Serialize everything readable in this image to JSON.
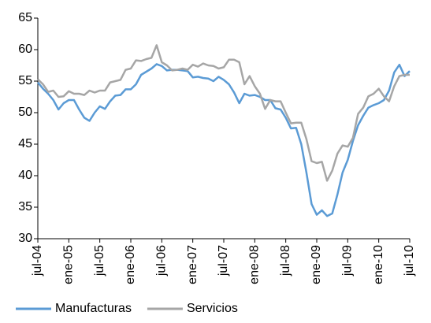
{
  "chart_data": {
    "type": "line",
    "categories": [
      "jul-04",
      null,
      null,
      null,
      null,
      null,
      "ene-05",
      null,
      null,
      null,
      null,
      null,
      "jul-05",
      null,
      null,
      null,
      null,
      null,
      "ene-06",
      null,
      null,
      null,
      null,
      null,
      "jul-06",
      null,
      null,
      null,
      null,
      null,
      "ene-07",
      null,
      null,
      null,
      null,
      null,
      "jul-07",
      null,
      null,
      null,
      null,
      null,
      "ene-08",
      null,
      null,
      null,
      null,
      null,
      "jul-08",
      null,
      null,
      null,
      null,
      null,
      "ene-09",
      null,
      null,
      null,
      null,
      null,
      "jul-09",
      null,
      null,
      null,
      null,
      null,
      "ene-10",
      null,
      null,
      null,
      null,
      null,
      "jul-10"
    ],
    "series": [
      {
        "name": "Manufacturas",
        "color": "#5b9bd5",
        "values": [
          54.8,
          53.8,
          53,
          52,
          50.5,
          51.5,
          52,
          52,
          50.5,
          49.2,
          48.7,
          50,
          51,
          50.6,
          51.8,
          52.7,
          52.8,
          53.7,
          53.7,
          54.5,
          56,
          56.5,
          57,
          57.7,
          57.4,
          56.7,
          56.8,
          56.8,
          56.7,
          56.6,
          55.6,
          55.7,
          55.5,
          55.4,
          55,
          55.7,
          55.2,
          54.5,
          53.2,
          51.5,
          53,
          52.7,
          52.8,
          52.5,
          52,
          52,
          50.7,
          50.5,
          49.2,
          47.5,
          47.6,
          45,
          40.5,
          35.5,
          33.8,
          34.5,
          33.6,
          34,
          37,
          40.5,
          42.5,
          45.5,
          48,
          49.5,
          50.8,
          51.2,
          51.5,
          52,
          53.5,
          56.4,
          57.6,
          55.8,
          56.6
        ]
      },
      {
        "name": "Servicios",
        "color": "#a6a6a6",
        "values": [
          55.3,
          54.5,
          53.3,
          53.5,
          52.5,
          52.6,
          53.4,
          53,
          53,
          52.8,
          53.5,
          53.2,
          53.5,
          53.5,
          54.8,
          55,
          55.2,
          56.8,
          57,
          58.3,
          58.2,
          58.5,
          58.7,
          60.7,
          58,
          57.5,
          56.7,
          56.8,
          57,
          56.8,
          57.6,
          57.3,
          57.8,
          57.5,
          57.4,
          57,
          57.2,
          58.4,
          58.4,
          58,
          54.5,
          55.8,
          54.2,
          53,
          50.6,
          52,
          51.8,
          51.8,
          50,
          48.3,
          48.4,
          48.4,
          45.8,
          42.3,
          42,
          42.2,
          39.2,
          40.8,
          43.5,
          44.8,
          44.6,
          46,
          49.8,
          50.8,
          52.6,
          53,
          53.8,
          52.6,
          51.8,
          54.2,
          55.8,
          56,
          56
        ]
      }
    ],
    "ylim": [
      30,
      65
    ],
    "yticks": [
      30,
      35,
      40,
      45,
      50,
      55,
      60,
      65
    ],
    "grid": false,
    "legend": "bottom"
  }
}
